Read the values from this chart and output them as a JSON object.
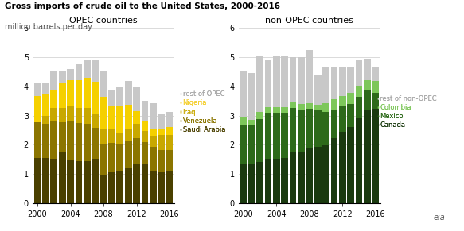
{
  "title_line1": "Gross imports of crude oil to the United States, 2000-2016",
  "title_line2": "million barrels per day",
  "years": [
    2000,
    2001,
    2002,
    2003,
    2004,
    2005,
    2006,
    2007,
    2008,
    2009,
    2010,
    2011,
    2012,
    2013,
    2014,
    2015,
    2016
  ],
  "opec": {
    "Saudi Arabia": [
      1.55,
      1.55,
      1.52,
      1.73,
      1.5,
      1.45,
      1.45,
      1.52,
      0.97,
      1.07,
      1.1,
      1.19,
      1.37,
      1.32,
      1.1,
      1.07,
      1.1
    ],
    "Venezuela": [
      1.23,
      1.16,
      1.28,
      1.05,
      1.29,
      1.28,
      1.26,
      1.07,
      1.07,
      0.99,
      0.9,
      0.92,
      0.87,
      0.78,
      0.82,
      0.75,
      0.72
    ],
    "Iraq": [
      0.0,
      0.29,
      0.47,
      0.47,
      0.53,
      0.52,
      0.56,
      0.47,
      0.49,
      0.47,
      0.42,
      0.42,
      0.47,
      0.37,
      0.38,
      0.52,
      0.52
    ],
    "Nigeria": [
      0.88,
      0.75,
      0.62,
      0.87,
      0.88,
      0.97,
      1.01,
      1.1,
      1.11,
      0.77,
      0.9,
      0.83,
      0.43,
      0.33,
      0.26,
      0.21,
      0.27
    ],
    "rest of OPEC": [
      0.45,
      0.35,
      0.62,
      0.41,
      0.4,
      0.56,
      0.62,
      0.73,
      0.9,
      0.57,
      0.68,
      0.82,
      0.86,
      0.7,
      0.86,
      0.5,
      0.51
    ]
  },
  "non_opec": {
    "Canada": [
      1.32,
      1.32,
      1.41,
      1.53,
      1.53,
      1.56,
      1.74,
      1.74,
      1.91,
      1.94,
      1.97,
      2.24,
      2.44,
      2.6,
      2.91,
      3.17,
      3.22
    ],
    "Mexico": [
      1.34,
      1.35,
      1.48,
      1.57,
      1.56,
      1.54,
      1.53,
      1.47,
      1.31,
      1.24,
      1.14,
      0.95,
      0.86,
      0.78,
      0.72,
      0.68,
      0.56
    ],
    "Colombia": [
      0.27,
      0.19,
      0.23,
      0.19,
      0.19,
      0.19,
      0.17,
      0.18,
      0.2,
      0.19,
      0.32,
      0.37,
      0.37,
      0.39,
      0.39,
      0.35,
      0.4
    ],
    "rest of non-OPEC": [
      1.57,
      1.59,
      1.89,
      1.62,
      1.73,
      1.76,
      1.56,
      1.6,
      1.81,
      1.04,
      1.23,
      1.11,
      0.97,
      0.88,
      0.86,
      0.73,
      0.5
    ]
  },
  "opec_colors": {
    "Saudi Arabia": "#4a4000",
    "Venezuela": "#8b7500",
    "Iraq": "#c8a800",
    "Nigeria": "#f5d000",
    "rest of OPEC": "#c8c8c8"
  },
  "non_opec_colors": {
    "Canada": "#1a3a0f",
    "Mexico": "#2d6a1a",
    "Colombia": "#7dc75a",
    "rest of non-OPEC": "#c8c8c8"
  },
  "ylim": [
    0,
    6
  ],
  "yticks": [
    0,
    1,
    2,
    3,
    4,
    5,
    6
  ],
  "background_color": "#ffffff",
  "grid_color": "#cccccc"
}
